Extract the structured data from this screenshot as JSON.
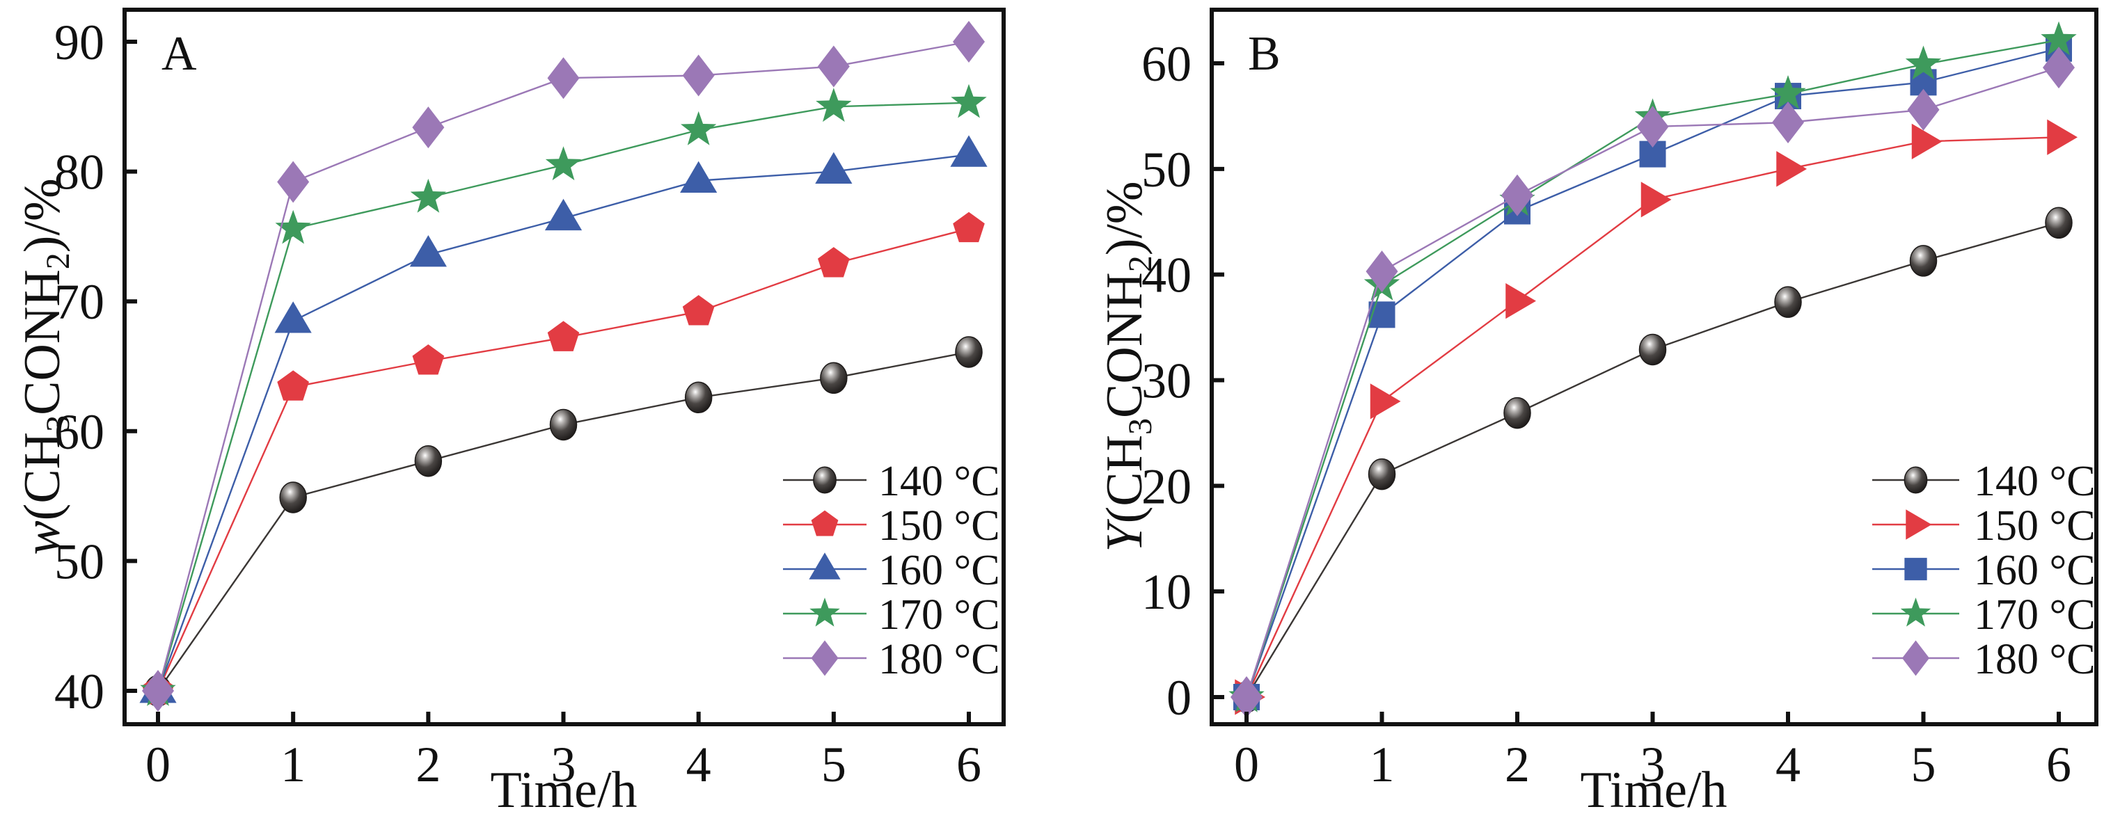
{
  "chart_data": [
    {
      "type": "line",
      "panel": "A",
      "title": "",
      "xlabel": "Time/h",
      "ylabel": {
        "prefix_italic": "w",
        "text_before_sub1": "(CH",
        "sub1": "3",
        "text_before_sub2": "CONH",
        "sub2": "2",
        "text_after": ")/%"
      },
      "x": [
        0,
        1,
        2,
        3,
        4,
        5,
        6
      ],
      "xlim": [
        -0.25,
        6.25
      ],
      "ylim": [
        37.2,
        92.8
      ],
      "xticks": [
        "0",
        "1",
        "2",
        "3",
        "4",
        "5",
        "6"
      ],
      "yticks": [
        "40",
        "50",
        "60",
        "70",
        "80",
        "90"
      ],
      "ytick_values": [
        40,
        50,
        60,
        70,
        80,
        90
      ],
      "grid": false,
      "legend_position": "bottom-right",
      "series": [
        {
          "name": "140 °C",
          "marker": "sphere",
          "color": "#3b3735",
          "values": [
            40.0,
            54.9,
            57.7,
            60.5,
            62.6,
            64.1,
            66.1
          ]
        },
        {
          "name": "150 °C",
          "marker": "pentagon",
          "color": "#e23c43",
          "values": [
            40.0,
            63.4,
            65.4,
            67.2,
            69.2,
            72.9,
            75.6
          ]
        },
        {
          "name": "160 °C",
          "marker": "triangle-up",
          "color": "#3d5ea8",
          "values": [
            40.0,
            68.5,
            73.6,
            76.4,
            79.3,
            80.0,
            81.3
          ]
        },
        {
          "name": "170 °C",
          "marker": "star",
          "color": "#3e9a5c",
          "values": [
            40.0,
            75.6,
            78.0,
            80.5,
            83.2,
            85.0,
            85.3
          ]
        },
        {
          "name": "180 °C",
          "marker": "diamond",
          "color": "#9b78b6",
          "values": [
            40.0,
            79.2,
            83.4,
            87.2,
            87.4,
            88.1,
            90.0
          ]
        }
      ]
    },
    {
      "type": "line",
      "panel": "B",
      "title": "",
      "xlabel": "Time/h",
      "ylabel": {
        "prefix_italic": "Y",
        "text_before_sub1": "(CH",
        "sub1": "3",
        "text_before_sub2": "CONH",
        "sub2": "2",
        "text_after": ")/%"
      },
      "x": [
        0,
        1,
        2,
        3,
        4,
        5,
        6
      ],
      "xlim": [
        -0.25,
        6.25
      ],
      "ylim": [
        -2.5,
        65
      ],
      "xticks": [
        "0",
        "1",
        "2",
        "3",
        "4",
        "5",
        "6"
      ],
      "yticks": [
        "0",
        "10",
        "20",
        "30",
        "40",
        "50",
        "60"
      ],
      "ytick_values": [
        0,
        10,
        20,
        30,
        40,
        50,
        60
      ],
      "grid": false,
      "legend_position": "bottom-right",
      "series": [
        {
          "name": "140 °C",
          "marker": "sphere",
          "color": "#3b3735",
          "values": [
            0.0,
            21.1,
            26.9,
            32.9,
            37.4,
            41.3,
            44.9
          ]
        },
        {
          "name": "150 °C",
          "marker": "triangle-right",
          "color": "#e23c43",
          "values": [
            0.0,
            28.0,
            37.5,
            47.1,
            50.0,
            52.6,
            53.0
          ]
        },
        {
          "name": "160 °C",
          "marker": "square",
          "color": "#3d5ea8",
          "values": [
            0.0,
            36.2,
            46.0,
            51.4,
            56.9,
            58.2,
            61.4
          ]
        },
        {
          "name": "170 °C",
          "marker": "star",
          "color": "#3e9a5c",
          "values": [
            0.0,
            39.0,
            47.0,
            54.9,
            57.1,
            59.9,
            62.2
          ]
        },
        {
          "name": "180 °C",
          "marker": "diamond",
          "color": "#9b78b6",
          "values": [
            0.0,
            40.3,
            47.5,
            54.0,
            54.4,
            55.6,
            59.6
          ]
        }
      ]
    }
  ],
  "panels": {
    "A": {
      "letter": "A"
    },
    "B": {
      "letter": "B"
    }
  }
}
